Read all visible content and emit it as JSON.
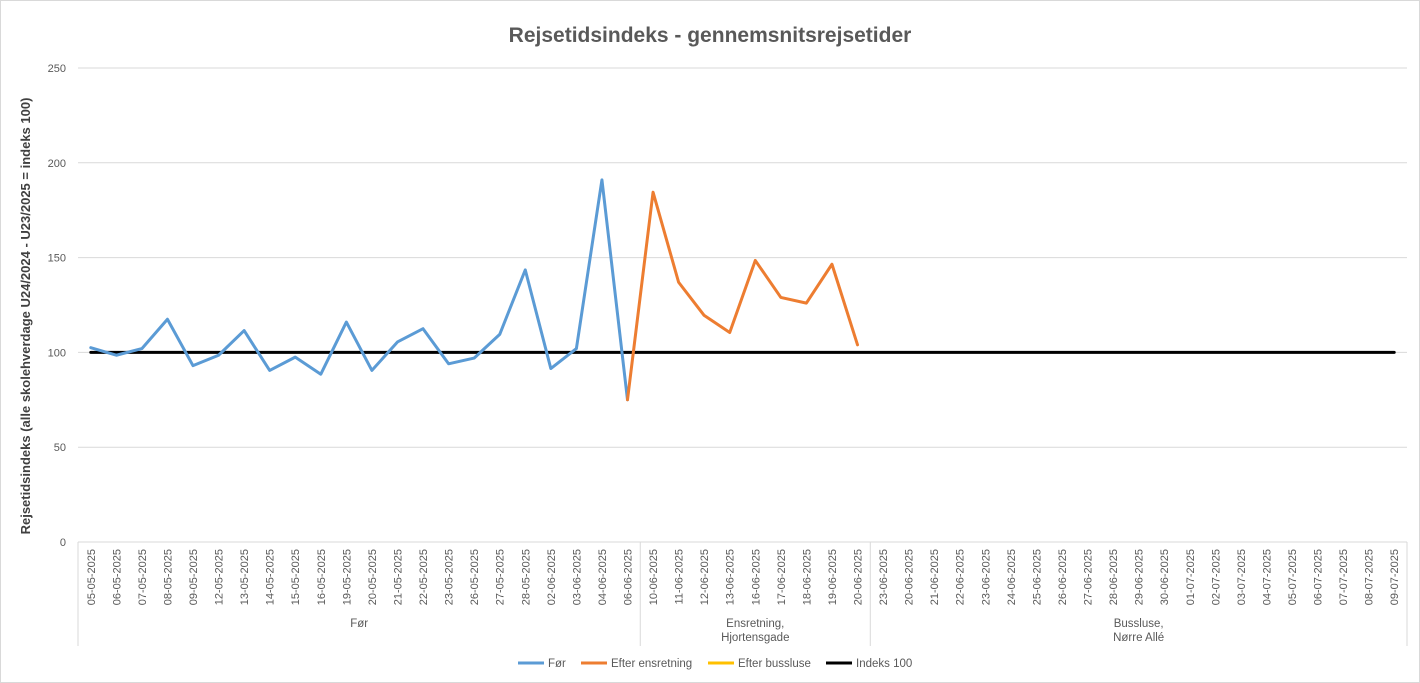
{
  "chart_data": {
    "type": "line",
    "title": "Rejsetidsindeks - gennemsnitsrejsetider",
    "xlabel": "",
    "ylabel": "Rejsetidsindeks (alle skolehverdage U24/2024 - U23/2025 = indeks 100)",
    "ylim": [
      0,
      250
    ],
    "yticks": [
      0,
      50,
      100,
      150,
      200,
      250
    ],
    "grid": true,
    "legend_position": "bottom",
    "categories": [
      "05-05-2025",
      "06-05-2025",
      "07-05-2025",
      "08-05-2025",
      "09-05-2025",
      "12-05-2025",
      "13-05-2025",
      "14-05-2025",
      "15-05-2025",
      "16-05-2025",
      "19-05-2025",
      "20-05-2025",
      "21-05-2025",
      "22-05-2025",
      "23-05-2025",
      "26-05-2025",
      "27-05-2025",
      "28-05-2025",
      "02-06-2025",
      "03-06-2025",
      "04-06-2025",
      "06-06-2025",
      "10-06-2025",
      "11-06-2025",
      "12-06-2025",
      "13-06-2025",
      "16-06-2025",
      "17-06-2025",
      "18-06-2025",
      "19-06-2025",
      "20-06-2025",
      "23-06-2025",
      "20-06-2025",
      "21-06-2025",
      "22-06-2025",
      "23-06-2025",
      "24-06-2025",
      "25-06-2025",
      "26-06-2025",
      "27-06-2025",
      "28-06-2025",
      "29-06-2025",
      "30-06-2025",
      "01-07-2025",
      "02-07-2025",
      "03-07-2025",
      "04-07-2025",
      "05-07-2025",
      "06-07-2025",
      "07-07-2025",
      "08-07-2025",
      "09-07-2025"
    ],
    "groups": [
      {
        "label": "Før",
        "start": 0,
        "end": 21
      },
      {
        "label": "Ensretning,\nHjortensgade",
        "start": 22,
        "end": 30
      },
      {
        "label": "Bussluse,\nNørre Allé",
        "start": 31,
        "end": 51
      }
    ],
    "series": [
      {
        "name": "Før",
        "color": "#5b9bd5",
        "values": [
          102.5,
          98.5,
          102,
          117.5,
          93,
          98.5,
          111.5,
          90.5,
          97.5,
          88.5,
          116,
          90.5,
          105.5,
          112.5,
          94,
          97,
          109.5,
          143.5,
          91.5,
          102,
          191,
          75,
          null,
          null,
          null,
          null,
          null,
          null,
          null,
          null,
          null,
          null,
          null,
          null,
          null,
          null,
          null,
          null,
          null,
          null,
          null,
          null,
          null,
          null,
          null,
          null,
          null,
          null,
          null,
          null,
          null,
          null
        ]
      },
      {
        "name": "Efter ensretning",
        "color": "#ed7d31",
        "values": [
          null,
          null,
          null,
          null,
          null,
          null,
          null,
          null,
          null,
          null,
          null,
          null,
          null,
          null,
          null,
          null,
          null,
          null,
          null,
          null,
          null,
          75,
          184.5,
          137,
          119.5,
          110.5,
          148.5,
          129,
          126,
          146.5,
          104,
          null,
          null,
          null,
          null,
          null,
          null,
          null,
          null,
          null,
          null,
          null,
          null,
          null,
          null,
          null,
          null,
          null,
          null,
          null,
          null,
          null
        ]
      },
      {
        "name": "Efter bussluse",
        "color": "#ffc000",
        "values": [
          null,
          null,
          null,
          null,
          null,
          null,
          null,
          null,
          null,
          null,
          null,
          null,
          null,
          null,
          null,
          null,
          null,
          null,
          null,
          null,
          null,
          null,
          null,
          null,
          null,
          null,
          null,
          null,
          null,
          null,
          null,
          null,
          null,
          null,
          null,
          null,
          null,
          null,
          null,
          null,
          null,
          null,
          null,
          null,
          null,
          null,
          null,
          null,
          null,
          null,
          null,
          null
        ]
      },
      {
        "name": "Indeks 100",
        "color": "#000000",
        "values": [
          100,
          100,
          100,
          100,
          100,
          100,
          100,
          100,
          100,
          100,
          100,
          100,
          100,
          100,
          100,
          100,
          100,
          100,
          100,
          100,
          100,
          100,
          100,
          100,
          100,
          100,
          100,
          100,
          100,
          100,
          100,
          100,
          100,
          100,
          100,
          100,
          100,
          100,
          100,
          100,
          100,
          100,
          100,
          100,
          100,
          100,
          100,
          100,
          100,
          100,
          100,
          100
        ]
      }
    ]
  }
}
